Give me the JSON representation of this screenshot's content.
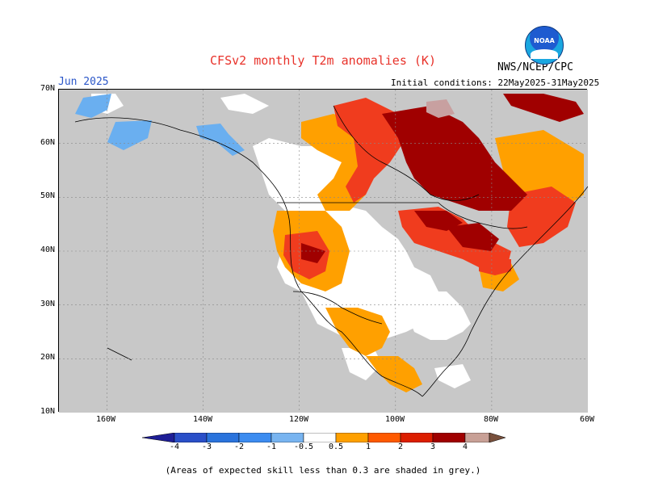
{
  "header": {
    "title": "CFSv2 monthly T2m anomalies (K)",
    "period": "Jun 2025",
    "agency": "NWS/NCEP/CPC",
    "initial_conditions": "Initial conditions: 22May2025-31May2025",
    "logo_text": "NOAA"
  },
  "map": {
    "lat_labels": [
      "70N",
      "60N",
      "50N",
      "40N",
      "30N",
      "20N",
      "10N"
    ],
    "lon_labels": [
      "160W",
      "140W",
      "120W",
      "100W",
      "80W",
      "60W"
    ],
    "lat_range": [
      10,
      70
    ],
    "lon_range": [
      -170,
      -60
    ],
    "grey_meaning": "low skill",
    "colors": {
      "grey": "#c8c8c8",
      "ocean_land_neutral": "#ffffff",
      "light_blue": "#6aaff0",
      "orange": "#ffa000",
      "red_orange": "#f03c1e",
      "dark_red": "#a00000",
      "rose": "#c8a0a0"
    }
  },
  "colorbar": {
    "labels": [
      "-4",
      "-3",
      "-2",
      "-1",
      "-0.5",
      "0.5",
      "1",
      "2",
      "3",
      "4"
    ],
    "colors": [
      "#1e1e96",
      "#2a4fc8",
      "#2a73dc",
      "#3c8cf0",
      "#78b4f0",
      "#ffffff",
      "#ffa000",
      "#ff5a00",
      "#dc1e00",
      "#a00000",
      "#c8a096",
      "#78503c"
    ]
  },
  "footnote": "(Areas of expected skill less than 0.3 are shaded in grey.)"
}
